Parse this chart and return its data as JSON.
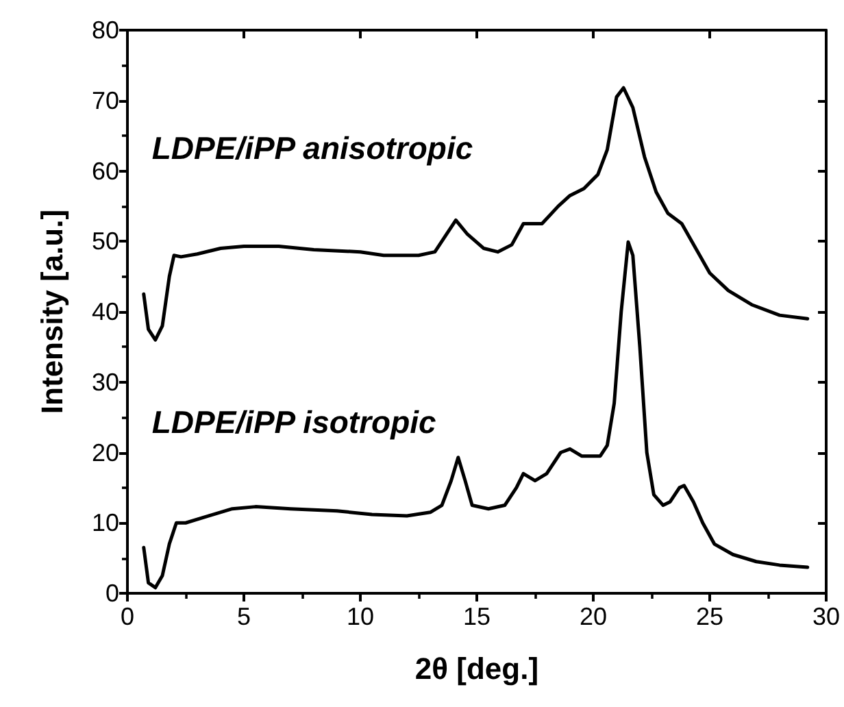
{
  "chart_data": {
    "type": "line",
    "xlabel": "2θ [deg.]",
    "ylabel": "Intensity [a.u.]",
    "xlim": [
      0,
      30
    ],
    "ylim": [
      0,
      80
    ],
    "xticks": [
      0,
      5,
      10,
      15,
      20,
      25,
      30
    ],
    "yticks": [
      0,
      10,
      20,
      30,
      40,
      50,
      60,
      70,
      80
    ],
    "grid": false,
    "legend": false,
    "marker": "none",
    "line_style": "solid",
    "series": [
      {
        "name": "LDPE/iPP anisotropic",
        "color": "#000000",
        "x": [
          0.7,
          0.9,
          1.2,
          1.5,
          1.8,
          2.0,
          2.3,
          3,
          4,
          5,
          6.5,
          8,
          10,
          11,
          12.5,
          13.2,
          13.7,
          14.1,
          14.6,
          15.3,
          15.9,
          16.5,
          17,
          17.8,
          18.5,
          19,
          19.6,
          20.2,
          20.6,
          21.0,
          21.3,
          21.7,
          22.2,
          22.7,
          23.2,
          23.8,
          24.4,
          25,
          25.8,
          26.8,
          28,
          29.2
        ],
        "values": [
          42.5,
          37.5,
          36,
          38,
          45,
          48,
          47.8,
          48.2,
          49,
          49.3,
          49.3,
          48.8,
          48.5,
          48,
          48,
          48.5,
          51,
          53,
          51,
          49,
          48.5,
          49.5,
          52.5,
          52.5,
          55,
          56.5,
          57.5,
          59.5,
          63,
          70.5,
          71.8,
          69,
          62,
          57,
          54,
          52.5,
          49,
          45.5,
          43,
          41,
          39.5,
          39
        ]
      },
      {
        "name": "LDPE/iPP isotropic",
        "color": "#000000",
        "x": [
          0.7,
          0.9,
          1.2,
          1.5,
          1.8,
          2.1,
          2.5,
          3.5,
          4.5,
          5.5,
          7,
          9,
          10.5,
          12,
          13,
          13.5,
          13.9,
          14.2,
          14.5,
          14.8,
          15.5,
          16.2,
          16.7,
          17,
          17.5,
          18,
          18.6,
          19,
          19.5,
          20.3,
          20.6,
          20.9,
          21.2,
          21.5,
          21.7,
          22,
          22.3,
          22.6,
          23,
          23.3,
          23.7,
          23.9,
          24.3,
          24.7,
          25.2,
          26,
          27,
          28,
          29.2
        ],
        "values": [
          6.5,
          1.5,
          0.8,
          2.5,
          7,
          10,
          10,
          11,
          12,
          12.3,
          12,
          11.7,
          11.2,
          11,
          11.5,
          12.5,
          16,
          19.3,
          16,
          12.5,
          12,
          12.5,
          15,
          17,
          16,
          17,
          20,
          20.5,
          19.5,
          19.5,
          21,
          27,
          40,
          49.9,
          48,
          35,
          20,
          14,
          12.5,
          13,
          15,
          15.3,
          13,
          10,
          7,
          5.5,
          4.5,
          4,
          3.7
        ]
      }
    ]
  }
}
